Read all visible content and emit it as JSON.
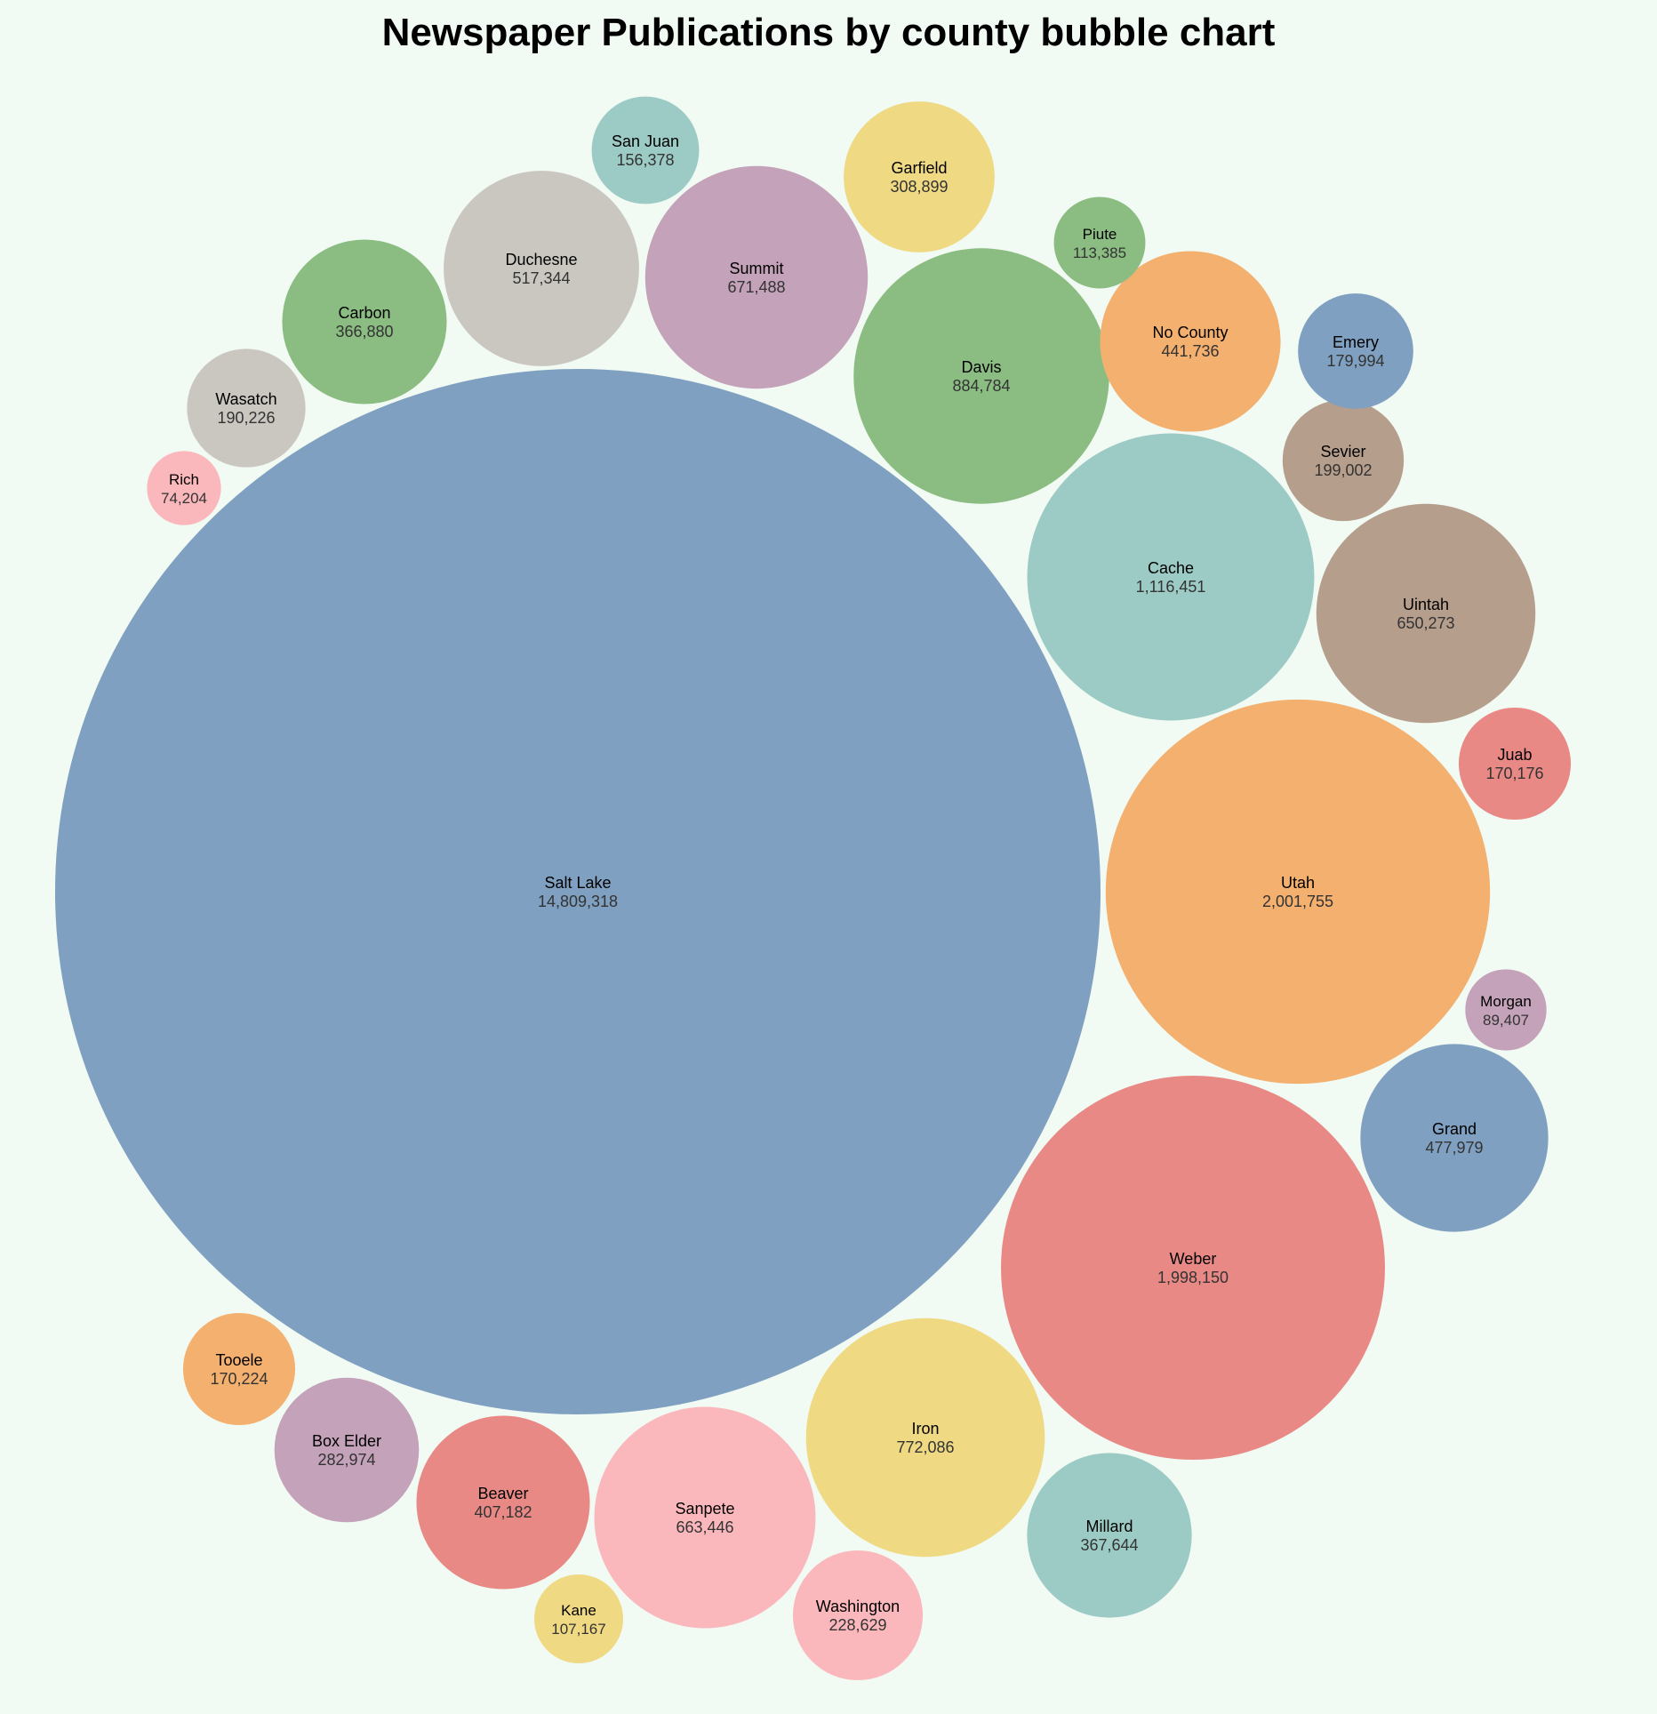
{
  "chart_data": {
    "type": "bubble",
    "title": "Newspaper Publications by county bubble chart",
    "bubbles": [
      {
        "label": "Salt Lake",
        "value": 14809318,
        "color": "#7fa0c0",
        "value_text": "14,809,318"
      },
      {
        "label": "Utah",
        "value": 2001755,
        "color": "#f3b06f",
        "value_text": "2,001,755"
      },
      {
        "label": "Weber",
        "value": 1998150,
        "color": "#e88985",
        "value_text": "1,998,150"
      },
      {
        "label": "Cache",
        "value": 1116451,
        "color": "#9ccbc5",
        "value_text": "1,116,451"
      },
      {
        "label": "Davis",
        "value": 884784,
        "color": "#8bbd82",
        "value_text": "884,784"
      },
      {
        "label": "Iron",
        "value": 772086,
        "color": "#efd983",
        "value_text": "772,086"
      },
      {
        "label": "Summit",
        "value": 671488,
        "color": "#c4a2b9",
        "value_text": "671,488"
      },
      {
        "label": "Sanpete",
        "value": 663446,
        "color": "#fbb8bc",
        "value_text": "663,446"
      },
      {
        "label": "Uintah",
        "value": 650273,
        "color": "#b69e8c",
        "value_text": "650,273"
      },
      {
        "label": "Duchesne",
        "value": 517344,
        "color": "#cac7c0",
        "value_text": "517,344"
      },
      {
        "label": "Grand",
        "value": 477979,
        "color": "#7fa0c0",
        "value_text": "477,979"
      },
      {
        "label": "No County",
        "value": 441736,
        "color": "#f3b06f",
        "value_text": "441,736"
      },
      {
        "label": "Beaver",
        "value": 407182,
        "color": "#e88985",
        "value_text": "407,182"
      },
      {
        "label": "Millard",
        "value": 367644,
        "color": "#9ccbc5",
        "value_text": "367,644"
      },
      {
        "label": "Carbon",
        "value": 366880,
        "color": "#8bbd82",
        "value_text": "366,880"
      },
      {
        "label": "Garfield",
        "value": 308899,
        "color": "#efd983",
        "value_text": "308,899"
      },
      {
        "label": "Box Elder",
        "value": 282974,
        "color": "#c4a2b9",
        "value_text": "282,974"
      },
      {
        "label": "Washington",
        "value": 228629,
        "color": "#fbb8bc",
        "value_text": "228,629"
      },
      {
        "label": "Sevier",
        "value": 199002,
        "color": "#b69e8c",
        "value_text": "199,002"
      },
      {
        "label": "Wasatch",
        "value": 190226,
        "color": "#cac7c0",
        "value_text": "190,226"
      },
      {
        "label": "Emery",
        "value": 179994,
        "color": "#7fa0c0",
        "value_text": "179,994"
      },
      {
        "label": "Tooele",
        "value": 170224,
        "color": "#f3b06f",
        "value_text": "170,224"
      },
      {
        "label": "Juab",
        "value": 170176,
        "color": "#e88985",
        "value_text": "170,176"
      },
      {
        "label": "San Juan",
        "value": 156378,
        "color": "#9ccbc5",
        "value_text": "156,378"
      },
      {
        "label": "Piute",
        "value": 113385,
        "color": "#8bbd82",
        "value_text": "113,385"
      },
      {
        "label": "Kane",
        "value": 107167,
        "color": "#efd983",
        "value_text": "107,167"
      },
      {
        "label": "Morgan",
        "value": 89407,
        "color": "#c4a2b9",
        "value_text": "89,407"
      },
      {
        "label": "Rich",
        "value": 74204,
        "color": "#fbb8bc",
        "value_text": "74,204"
      }
    ]
  }
}
